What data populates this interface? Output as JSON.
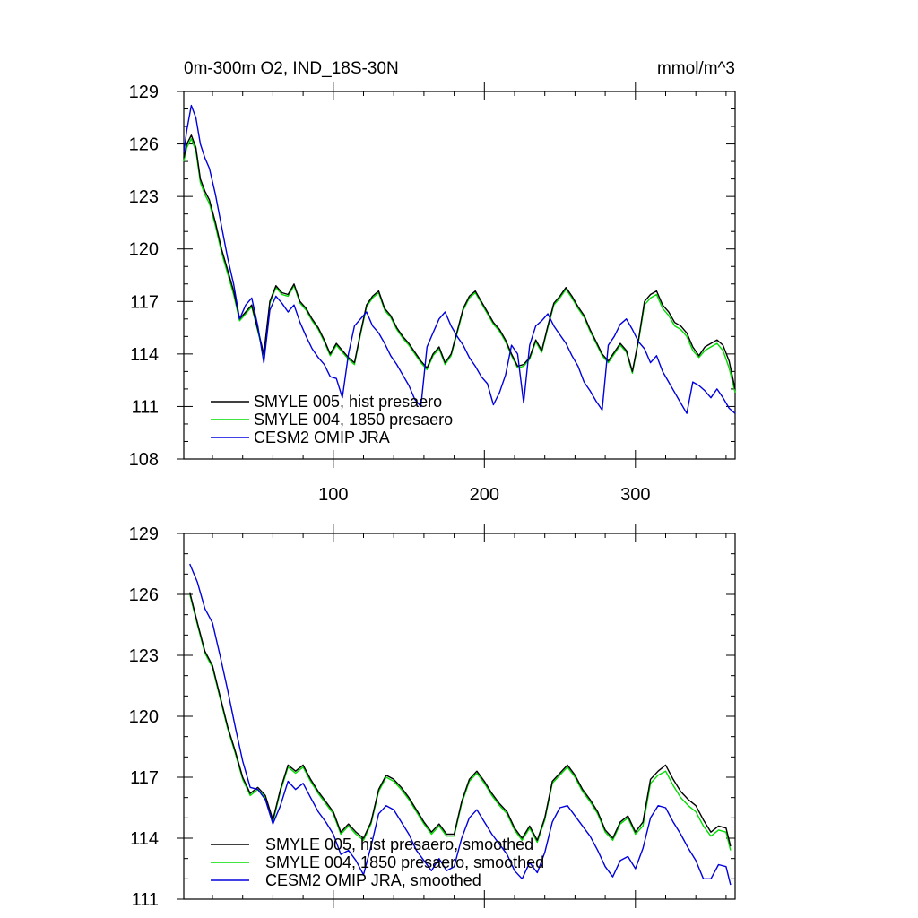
{
  "chart_data": [
    {
      "type": "line",
      "title": "0m-300m O2, IND_18S-30N",
      "units": "mmol/m^3",
      "xlabel": "",
      "ylabel": "",
      "xlim": [
        1,
        366
      ],
      "ylim": [
        108,
        129
      ],
      "xticks": [
        100,
        200,
        300
      ],
      "yticks": [
        108,
        111,
        114,
        117,
        120,
        123,
        126,
        129
      ],
      "legend_position": "bottom-left",
      "colors": {
        "SMYLE 005, hist presaero": "#000000",
        "SMYLE 004, 1850 presaero": "#00dd00",
        "CESM2 OMIP JRA": "#0000dd"
      },
      "series": [
        {
          "name": "SMYLE 005, hist presaero",
          "x": [
            1,
            3,
            6,
            9,
            12,
            15,
            18,
            22,
            26,
            30,
            34,
            38,
            42,
            46,
            50,
            54,
            58,
            62,
            66,
            70,
            74,
            78,
            82,
            86,
            90,
            94,
            98,
            102,
            106,
            110,
            114,
            118,
            122,
            126,
            130,
            134,
            138,
            142,
            146,
            150,
            154,
            158,
            162,
            166,
            170,
            174,
            178,
            182,
            186,
            190,
            194,
            198,
            202,
            206,
            210,
            214,
            218,
            222,
            226,
            230,
            234,
            238,
            242,
            246,
            250,
            254,
            258,
            262,
            266,
            270,
            274,
            278,
            282,
            286,
            290,
            294,
            298,
            302,
            306,
            310,
            314,
            318,
            322,
            326,
            330,
            334,
            338,
            342,
            346,
            350,
            354,
            358,
            362,
            366
          ],
          "values": [
            125.2,
            126.0,
            126.5,
            125.8,
            124.0,
            123.3,
            122.8,
            121.5,
            120.0,
            118.8,
            117.6,
            116.0,
            116.4,
            116.8,
            115.4,
            114.0,
            117.0,
            117.9,
            117.5,
            117.4,
            118.0,
            117.0,
            116.6,
            116.0,
            115.5,
            114.8,
            114.0,
            114.6,
            114.2,
            113.8,
            113.5,
            115.2,
            116.8,
            117.3,
            117.6,
            116.6,
            116.2,
            115.5,
            115.0,
            114.6,
            114.1,
            113.6,
            113.2,
            114.0,
            114.4,
            113.5,
            114.0,
            115.3,
            116.6,
            117.3,
            117.6,
            117.0,
            116.4,
            115.8,
            115.4,
            114.8,
            114.0,
            113.3,
            113.4,
            113.8,
            114.8,
            114.2,
            115.6,
            116.9,
            117.3,
            117.8,
            117.3,
            116.7,
            116.2,
            115.4,
            114.7,
            114.0,
            113.6,
            114.1,
            114.6,
            114.2,
            113.0,
            114.8,
            117.0,
            117.4,
            117.6,
            116.8,
            116.4,
            115.8,
            115.6,
            115.2,
            114.4,
            113.9,
            114.4,
            114.6,
            114.8,
            114.5,
            113.6,
            112.0
          ]
        },
        {
          "name": "SMYLE 004, 1850 presaero",
          "x": [
            1,
            3,
            6,
            9,
            12,
            15,
            18,
            22,
            26,
            30,
            34,
            38,
            42,
            46,
            50,
            54,
            58,
            62,
            66,
            70,
            74,
            78,
            82,
            86,
            90,
            94,
            98,
            102,
            106,
            110,
            114,
            118,
            122,
            126,
            130,
            134,
            138,
            142,
            146,
            150,
            154,
            158,
            162,
            166,
            170,
            174,
            178,
            182,
            186,
            190,
            194,
            198,
            202,
            206,
            210,
            214,
            218,
            222,
            226,
            230,
            234,
            238,
            242,
            246,
            250,
            254,
            258,
            262,
            266,
            270,
            274,
            278,
            282,
            286,
            290,
            294,
            298,
            302,
            306,
            310,
            314,
            318,
            322,
            326,
            330,
            334,
            338,
            342,
            346,
            350,
            354,
            358,
            362,
            366
          ],
          "values": [
            125.0,
            125.8,
            126.3,
            125.6,
            123.8,
            123.1,
            122.6,
            121.3,
            119.8,
            118.6,
            117.4,
            115.9,
            116.3,
            116.7,
            115.3,
            113.9,
            116.9,
            117.8,
            117.4,
            117.3,
            117.9,
            116.9,
            116.5,
            115.9,
            115.4,
            114.7,
            113.9,
            114.5,
            114.1,
            113.7,
            113.4,
            115.1,
            116.7,
            117.2,
            117.5,
            116.5,
            116.1,
            115.4,
            114.9,
            114.5,
            114.0,
            113.5,
            113.1,
            113.9,
            114.3,
            113.4,
            113.9,
            115.2,
            116.5,
            117.2,
            117.5,
            116.9,
            116.3,
            115.7,
            115.3,
            114.7,
            113.9,
            113.2,
            113.3,
            113.7,
            114.7,
            114.1,
            115.5,
            116.8,
            117.2,
            117.7,
            117.2,
            116.6,
            116.1,
            115.3,
            114.6,
            113.9,
            113.5,
            114.0,
            114.5,
            114.1,
            112.9,
            114.7,
            116.8,
            117.2,
            117.4,
            116.6,
            116.2,
            115.6,
            115.4,
            115.0,
            114.2,
            113.8,
            114.2,
            114.4,
            114.6,
            114.2,
            113.2,
            111.8
          ]
        },
        {
          "name": "CESM2 OMIP JRA",
          "x": [
            1,
            3,
            6,
            9,
            12,
            15,
            18,
            22,
            26,
            30,
            34,
            38,
            42,
            46,
            50,
            54,
            58,
            62,
            66,
            70,
            74,
            78,
            82,
            86,
            90,
            94,
            98,
            102,
            106,
            110,
            114,
            118,
            122,
            126,
            130,
            134,
            138,
            142,
            146,
            150,
            154,
            158,
            162,
            166,
            170,
            174,
            178,
            182,
            186,
            190,
            194,
            198,
            202,
            206,
            210,
            214,
            218,
            222,
            226,
            230,
            234,
            238,
            242,
            246,
            250,
            254,
            258,
            262,
            266,
            270,
            274,
            278,
            282,
            286,
            290,
            294,
            298,
            302,
            306,
            310,
            314,
            318,
            322,
            326,
            330,
            334,
            338,
            342,
            346,
            350,
            354,
            358,
            362,
            366
          ],
          "values": [
            125.5,
            126.8,
            128.2,
            127.5,
            126.0,
            125.2,
            124.6,
            123.1,
            121.3,
            119.5,
            118.0,
            116.0,
            116.8,
            117.2,
            115.6,
            113.5,
            116.5,
            117.3,
            116.9,
            116.4,
            116.8,
            115.8,
            115.0,
            114.3,
            113.8,
            113.4,
            112.7,
            112.6,
            111.5,
            114.0,
            115.6,
            116.0,
            116.4,
            115.6,
            115.2,
            114.6,
            113.9,
            113.4,
            112.8,
            112.2,
            111.4,
            111.0,
            114.4,
            115.2,
            116.0,
            116.4,
            115.6,
            115.0,
            114.5,
            113.8,
            113.3,
            112.7,
            112.3,
            111.1,
            111.8,
            112.8,
            114.5,
            114.0,
            111.2,
            114.5,
            115.6,
            115.9,
            116.3,
            115.6,
            115.1,
            114.6,
            113.9,
            113.3,
            112.4,
            111.9,
            111.3,
            110.8,
            114.5,
            115.0,
            115.7,
            116.0,
            115.4,
            114.7,
            114.3,
            113.5,
            113.9,
            113.0,
            112.4,
            111.8,
            111.2,
            110.6,
            112.4,
            112.2,
            111.9,
            111.5,
            112.0,
            111.5,
            110.9,
            110.6
          ]
        }
      ]
    },
    {
      "type": "line",
      "title": "",
      "xlabel": "",
      "ylabel": "",
      "xlim": [
        1,
        366
      ],
      "ylim": [
        111,
        129
      ],
      "xticks": [
        100,
        200,
        300
      ],
      "yticks": [
        111,
        114,
        117,
        120,
        123,
        126,
        129
      ],
      "legend_position": "bottom-left",
      "colors": {
        "SMYLE 005, hist presaero, smoothed": "#000000",
        "SMYLE 004, 1850 presaero, smoothed": "#00dd00",
        "CESM2 OMIP JRA, smoothed": "#0000dd"
      },
      "series": [
        {
          "name": "SMYLE 005, hist presaero, smoothed",
          "x": [
            5,
            10,
            15,
            20,
            25,
            30,
            35,
            40,
            45,
            50,
            55,
            60,
            65,
            70,
            75,
            80,
            85,
            90,
            95,
            100,
            105,
            110,
            115,
            120,
            125,
            130,
            135,
            140,
            145,
            150,
            155,
            160,
            165,
            170,
            175,
            180,
            185,
            190,
            195,
            200,
            205,
            210,
            215,
            220,
            225,
            230,
            235,
            240,
            245,
            250,
            255,
            260,
            265,
            270,
            275,
            280,
            285,
            290,
            295,
            300,
            305,
            310,
            315,
            320,
            325,
            330,
            335,
            340,
            345,
            350,
            355,
            360,
            363
          ],
          "values": [
            126.1,
            124.6,
            123.2,
            122.5,
            121.0,
            119.5,
            118.3,
            117.0,
            116.2,
            116.5,
            116.1,
            114.9,
            116.4,
            117.6,
            117.3,
            117.6,
            116.9,
            116.3,
            115.8,
            115.3,
            114.3,
            114.7,
            114.3,
            114.0,
            114.8,
            116.4,
            117.1,
            116.9,
            116.5,
            116.0,
            115.4,
            114.8,
            114.3,
            114.7,
            114.2,
            114.2,
            115.8,
            116.9,
            117.3,
            116.8,
            116.2,
            115.7,
            115.3,
            114.5,
            114.0,
            114.6,
            113.9,
            115.0,
            116.8,
            117.2,
            117.6,
            117.1,
            116.4,
            115.9,
            115.3,
            114.4,
            114.0,
            114.8,
            115.1,
            114.3,
            114.8,
            116.9,
            117.3,
            117.6,
            116.9,
            116.3,
            115.9,
            115.6,
            114.9,
            114.3,
            114.6,
            114.5,
            113.6
          ]
        },
        {
          "name": "SMYLE 004, 1850 presaero, smoothed",
          "x": [
            5,
            10,
            15,
            20,
            25,
            30,
            35,
            40,
            45,
            50,
            55,
            60,
            65,
            70,
            75,
            80,
            85,
            90,
            95,
            100,
            105,
            110,
            115,
            120,
            125,
            130,
            135,
            140,
            145,
            150,
            155,
            160,
            165,
            170,
            175,
            180,
            185,
            190,
            195,
            200,
            205,
            210,
            215,
            220,
            225,
            230,
            235,
            240,
            245,
            250,
            255,
            260,
            265,
            270,
            275,
            280,
            285,
            290,
            295,
            300,
            305,
            310,
            315,
            320,
            325,
            330,
            335,
            340,
            345,
            350,
            355,
            360,
            363
          ],
          "values": [
            126.0,
            124.5,
            123.1,
            122.4,
            120.9,
            119.4,
            118.2,
            116.9,
            116.1,
            116.4,
            116.0,
            114.8,
            116.3,
            117.5,
            117.2,
            117.5,
            116.8,
            116.2,
            115.7,
            115.2,
            114.2,
            114.6,
            114.2,
            113.9,
            114.7,
            116.3,
            117.0,
            116.8,
            116.4,
            115.9,
            115.3,
            114.7,
            114.2,
            114.6,
            114.1,
            114.1,
            115.7,
            116.8,
            117.2,
            116.7,
            116.1,
            115.6,
            115.2,
            114.4,
            113.9,
            114.5,
            113.8,
            114.9,
            116.7,
            117.1,
            117.5,
            117.0,
            116.3,
            115.8,
            115.2,
            114.3,
            113.9,
            114.7,
            115.0,
            114.2,
            114.6,
            116.7,
            117.1,
            117.3,
            116.6,
            116.0,
            115.6,
            115.3,
            114.6,
            114.1,
            114.4,
            114.3,
            113.4
          ]
        },
        {
          "name": "CESM2 OMIP JRA, smoothed",
          "x": [
            5,
            10,
            15,
            20,
            25,
            30,
            35,
            40,
            45,
            50,
            55,
            60,
            65,
            70,
            75,
            80,
            85,
            90,
            95,
            100,
            105,
            110,
            115,
            120,
            125,
            130,
            135,
            140,
            145,
            150,
            155,
            160,
            165,
            170,
            175,
            180,
            185,
            190,
            195,
            200,
            205,
            210,
            215,
            220,
            225,
            230,
            235,
            240,
            245,
            250,
            255,
            260,
            265,
            270,
            275,
            280,
            285,
            290,
            295,
            300,
            305,
            310,
            315,
            320,
            325,
            330,
            335,
            340,
            345,
            350,
            355,
            360,
            363
          ],
          "values": [
            127.5,
            126.6,
            125.3,
            124.6,
            123.0,
            121.3,
            119.5,
            117.8,
            116.5,
            116.4,
            115.9,
            114.7,
            115.6,
            116.8,
            116.4,
            116.7,
            116.0,
            115.3,
            114.8,
            114.2,
            113.2,
            113.4,
            112.9,
            112.2,
            113.6,
            115.2,
            115.6,
            115.4,
            114.8,
            114.2,
            113.4,
            112.9,
            112.4,
            113.0,
            112.4,
            112.6,
            114.0,
            115.0,
            115.4,
            114.8,
            114.2,
            113.7,
            113.2,
            112.4,
            112.0,
            112.8,
            112.3,
            113.3,
            114.8,
            115.5,
            115.6,
            115.1,
            114.6,
            114.1,
            113.4,
            112.6,
            112.1,
            112.9,
            113.1,
            112.5,
            113.5,
            115.0,
            115.6,
            115.5,
            114.8,
            114.2,
            113.5,
            112.9,
            112.0,
            112.0,
            112.7,
            112.6,
            111.7
          ]
        }
      ]
    }
  ]
}
